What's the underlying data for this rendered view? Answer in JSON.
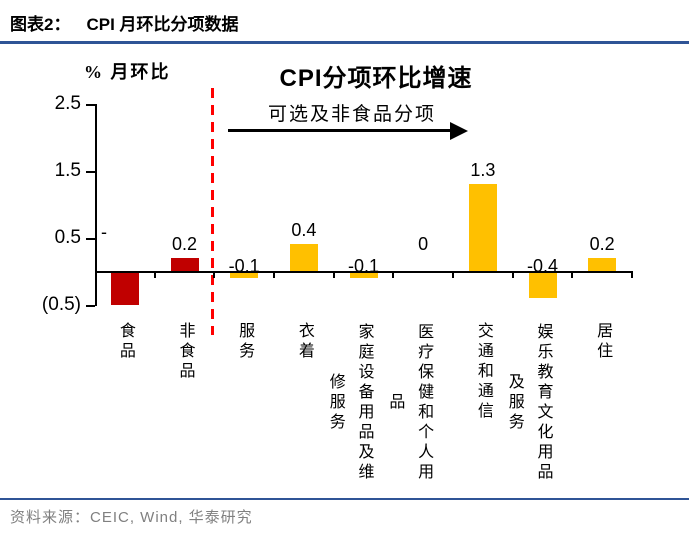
{
  "header": {
    "label": "图表2：",
    "title": "CPI 月环比分项数据"
  },
  "footer": {
    "source": "资料来源：CEIC, Wind, 华泰研究"
  },
  "chart_data": {
    "type": "bar",
    "title": "CPI分项环比增速",
    "ylabel": "% 月环比",
    "annotation": "可选及非食品分项",
    "categories": [
      "食品",
      "非食品",
      "服务",
      "衣着",
      "家庭设备用品及维修服务",
      "医疗保健和个人用品",
      "交通和通信",
      "娱乐教育文化用品及服务",
      "居住"
    ],
    "values": [
      -0.5,
      0.2,
      -0.1,
      0.4,
      -0.1,
      0,
      1.3,
      -0.4,
      0.2
    ],
    "point_labels": [
      "-",
      "0.2",
      "-0.1",
      "0.4",
      "-0.1",
      "0",
      "1.3",
      "-0.4",
      "0.2"
    ],
    "bar_colors": [
      "#C00000",
      "#C00000",
      "#FFC000",
      "#FFC000",
      "#FFC000",
      "#FFC000",
      "#FFC000",
      "#FFC000",
      "#FFC000"
    ],
    "ytick_labels": [
      "2.5",
      "1.5",
      "0.5",
      "(0.5)"
    ],
    "ytick_values": [
      2.5,
      1.5,
      0.5,
      -0.5
    ],
    "ylim": [
      -0.5,
      2.5
    ],
    "separator_after_index": 1,
    "legend": [],
    "grid": "off",
    "colors": {
      "food_bar": "#C00000",
      "nonfood_bar": "#FFC000",
      "separator_line": "#FF0000",
      "accent_rule": "#2F5496",
      "source_text": "#808080"
    }
  }
}
